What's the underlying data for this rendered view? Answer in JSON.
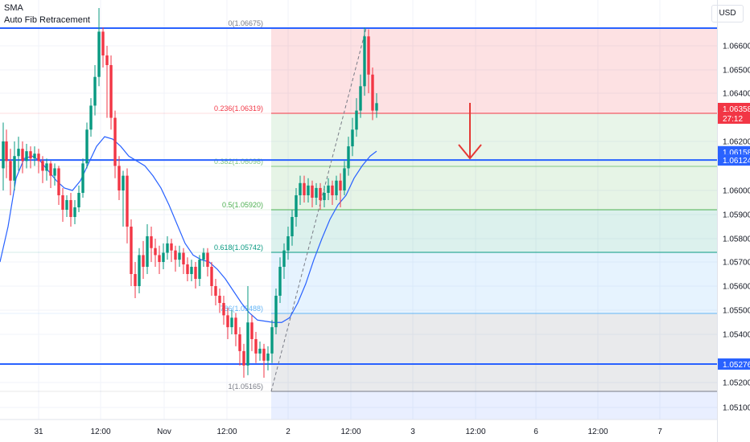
{
  "indicators": {
    "sma": "SMA",
    "fib": "Auto Fib Retracement"
  },
  "currency": "USD",
  "chart_data": {
    "type": "candlestick",
    "symbol_currency": "USD",
    "y_range": [
      1.05,
      1.068
    ],
    "y_ticks": [
      "1.06600",
      "1.06500",
      "1.06400",
      "1.06200",
      "1.06000",
      "1.05900",
      "1.05800",
      "1.05700",
      "1.05600",
      "1.05500",
      "1.05400",
      "1.05200",
      "1.05100"
    ],
    "x_ticks": [
      "31",
      "12:00",
      "Nov",
      "12:00",
      "2",
      "12:00",
      "3",
      "12:00",
      "6",
      "12:00",
      "7"
    ],
    "fib_levels": [
      {
        "ratio": "0",
        "price": 1.06675,
        "label": "0(1.06675)",
        "color": "#787b86"
      },
      {
        "ratio": "0.236",
        "price": 1.06319,
        "label": "0.236(1.06319)",
        "color": "#f23645"
      },
      {
        "ratio": "0.382",
        "price": 1.06098,
        "label": "0.382(1.06098)",
        "color": "#81c784"
      },
      {
        "ratio": "0.5",
        "price": 1.0592,
        "label": "0.5(1.05920)",
        "color": "#4caf50"
      },
      {
        "ratio": "0.618",
        "price": 1.05742,
        "label": "0.618(1.05742)",
        "color": "#089981"
      },
      {
        "ratio": "0.786",
        "price": 1.05488,
        "label": "786(1.05488)",
        "color": "#64b5f6"
      },
      {
        "ratio": "1",
        "price": 1.05165,
        "label": "1(1.05165)",
        "color": "#787b86"
      }
    ],
    "horizontal_lines": [
      1.06675,
      1.06124,
      1.05276
    ],
    "price_labels": [
      {
        "text": "1.06358",
        "sub": "27:12",
        "price": 1.06319,
        "color": "#f23645"
      },
      {
        "text": "1.06158",
        "price": 1.06158,
        "color": "#2962ff"
      },
      {
        "text": "1.06124",
        "price": 1.06124,
        "color": "#2962ff"
      },
      {
        "text": "1.05276",
        "price": 1.05276,
        "color": "#2962ff"
      }
    ],
    "sma": [
      [
        0,
        1.057
      ],
      [
        10,
        1.0585
      ],
      [
        20,
        1.0605
      ],
      [
        30,
        1.0613
      ],
      [
        40,
        1.0614
      ],
      [
        50,
        1.0612
      ],
      [
        60,
        1.0608
      ],
      [
        70,
        1.0604
      ],
      [
        80,
        1.0601
      ],
      [
        90,
        1.06
      ],
      [
        100,
        1.0604
      ],
      [
        110,
        1.0611
      ],
      [
        120,
        1.0618
      ],
      [
        130,
        1.0622
      ],
      [
        140,
        1.0621
      ],
      [
        150,
        1.0618
      ],
      [
        160,
        1.0614
      ],
      [
        170,
        1.0612
      ],
      [
        180,
        1.061
      ],
      [
        190,
        1.0606
      ],
      [
        200,
        1.0601
      ],
      [
        210,
        1.0594
      ],
      [
        220,
        1.0586
      ],
      [
        230,
        1.0578
      ],
      [
        240,
        1.0573
      ],
      [
        250,
        1.0571
      ],
      [
        260,
        1.057
      ],
      [
        270,
        1.0567
      ],
      [
        280,
        1.0563
      ],
      [
        290,
        1.0558
      ],
      [
        300,
        1.0553
      ],
      [
        310,
        1.0549
      ],
      [
        320,
        1.0546
      ],
      [
        340,
        1.0545
      ],
      [
        350,
        1.0545
      ],
      [
        360,
        1.0547
      ],
      [
        370,
        1.0553
      ],
      [
        380,
        1.0561
      ],
      [
        390,
        1.0571
      ],
      [
        400,
        1.058
      ],
      [
        410,
        1.0588
      ],
      [
        420,
        1.0594
      ],
      [
        430,
        1.0598
      ],
      [
        440,
        1.0605
      ],
      [
        450,
        1.061
      ],
      [
        460,
        1.0614
      ],
      [
        468,
        1.0616
      ]
    ],
    "candles": [
      [
        4,
        1.0609,
        1.062,
        1.06,
        1.0628
      ],
      [
        8,
        1.062,
        1.0612,
        1.0605,
        1.0625
      ],
      [
        13,
        1.0612,
        1.0604,
        1.0598,
        1.0617
      ],
      [
        18,
        1.0604,
        1.0614,
        1.06,
        1.062
      ],
      [
        23,
        1.0614,
        1.0617,
        1.0608,
        1.0622
      ],
      [
        28,
        1.0617,
        1.0612,
        1.0607,
        1.062
      ],
      [
        33,
        1.0612,
        1.0616,
        1.0609,
        1.0619
      ],
      [
        38,
        1.0616,
        1.0613,
        1.0609,
        1.0618
      ],
      [
        43,
        1.0613,
        1.0615,
        1.061,
        1.0618
      ],
      [
        48,
        1.0615,
        1.0612,
        1.0607,
        1.0617
      ],
      [
        53,
        1.0612,
        1.0608,
        1.0603,
        1.0614
      ],
      [
        58,
        1.0608,
        1.0611,
        1.0604,
        1.0613
      ],
      [
        63,
        1.0611,
        1.0606,
        1.0601,
        1.0612
      ],
      [
        68,
        1.0606,
        1.0609,
        1.0602,
        1.0611
      ],
      [
        73,
        1.0609,
        1.0598,
        1.0594,
        1.061
      ],
      [
        78,
        1.0598,
        1.0592,
        1.0587,
        1.0601
      ],
      [
        83,
        1.0592,
        1.0596,
        1.0589,
        1.0598
      ],
      [
        88,
        1.0596,
        1.0589,
        1.0585,
        1.0599
      ],
      [
        93,
        1.0589,
        1.0593,
        1.0586,
        1.0596
      ],
      [
        98,
        1.0593,
        1.0599,
        1.0591,
        1.0602
      ],
      [
        103,
        1.0599,
        1.0611,
        1.0597,
        1.0613
      ],
      [
        108,
        1.0611,
        1.0625,
        1.0609,
        1.0628
      ],
      [
        113,
        1.0625,
        1.0635,
        1.0622,
        1.0638
      ],
      [
        118,
        1.0635,
        1.0647,
        1.0631,
        1.0652
      ],
      [
        123,
        1.0647,
        1.0666,
        1.0643,
        1.0682
      ],
      [
        128,
        1.0666,
        1.0656,
        1.0651,
        1.0668
      ],
      [
        133,
        1.0656,
        1.0652,
        1.063,
        1.066
      ],
      [
        138,
        1.0652,
        1.063,
        1.0625,
        1.0656
      ],
      [
        143,
        1.063,
        1.061,
        1.0605,
        1.0633
      ],
      [
        148,
        1.061,
        1.06,
        1.0596,
        1.0614
      ],
      [
        153,
        1.06,
        1.0606,
        1.0585,
        1.0608
      ],
      [
        158,
        1.0606,
        1.0585,
        1.0578,
        1.0609
      ],
      [
        163,
        1.0585,
        1.0565,
        1.056,
        1.0588
      ],
      [
        168,
        1.0565,
        1.056,
        1.0555,
        1.057
      ],
      [
        173,
        1.056,
        1.0573,
        1.0557,
        1.0576
      ],
      [
        178,
        1.0573,
        1.0568,
        1.0563,
        1.0579
      ],
      [
        183,
        1.0568,
        1.0581,
        1.0565,
        1.0586
      ],
      [
        188,
        1.0581,
        1.0576,
        1.057,
        1.0585
      ],
      [
        193,
        1.0576,
        1.0573,
        1.0568,
        1.058
      ],
      [
        198,
        1.0573,
        1.057,
        1.0565,
        1.0577
      ],
      [
        203,
        1.057,
        1.0574,
        1.0567,
        1.0578
      ],
      [
        208,
        1.0574,
        1.0578,
        1.0571,
        1.0581
      ],
      [
        213,
        1.0578,
        1.0575,
        1.057,
        1.058
      ],
      [
        218,
        1.0575,
        1.0571,
        1.0566,
        1.0577
      ],
      [
        223,
        1.0571,
        1.0574,
        1.0568,
        1.0577
      ],
      [
        228,
        1.0574,
        1.0569,
        1.0565,
        1.0576
      ],
      [
        233,
        1.0569,
        1.0565,
        1.0562,
        1.0572
      ],
      [
        238,
        1.0565,
        1.0568,
        1.0562,
        1.0571
      ],
      [
        243,
        1.0568,
        1.0563,
        1.0559,
        1.057
      ],
      [
        248,
        1.0563,
        1.0571,
        1.056,
        1.0573
      ],
      [
        253,
        1.0571,
        1.0574,
        1.0568,
        1.0576
      ],
      [
        258,
        1.0574,
        1.0568,
        1.0564,
        1.0576
      ],
      [
        263,
        1.0568,
        1.056,
        1.0556,
        1.057
      ],
      [
        268,
        1.056,
        1.0556,
        1.0552,
        1.0563
      ],
      [
        273,
        1.0556,
        1.0553,
        1.0549,
        1.0559
      ],
      [
        278,
        1.0553,
        1.0548,
        1.0544,
        1.0556
      ],
      [
        283,
        1.0548,
        1.0543,
        1.0538,
        1.0551
      ],
      [
        288,
        1.0543,
        1.0547,
        1.054,
        1.055
      ],
      [
        293,
        1.0547,
        1.054,
        1.0535,
        1.0549
      ],
      [
        298,
        1.054,
        1.0533,
        1.0527,
        1.0543
      ],
      [
        303,
        1.0533,
        1.0527,
        1.0522,
        1.0536
      ],
      [
        308,
        1.0527,
        1.0545,
        1.0523,
        1.056
      ],
      [
        313,
        1.0545,
        1.0538,
        1.0533,
        1.0548
      ],
      [
        318,
        1.0538,
        1.0532,
        1.0528,
        1.0541
      ],
      [
        323,
        1.0532,
        1.0534,
        1.0529,
        1.0537
      ],
      [
        328,
        1.0534,
        1.0529,
        1.0522,
        1.0536
      ],
      [
        333,
        1.0529,
        1.0532,
        1.0525,
        1.0535
      ],
      [
        338,
        1.0532,
        1.0543,
        1.0528,
        1.0546
      ],
      [
        343,
        1.0543,
        1.0556,
        1.054,
        1.0559
      ],
      [
        348,
        1.0556,
        1.0568,
        1.0553,
        1.0572
      ],
      [
        353,
        1.0568,
        1.0575,
        1.0563,
        1.0578
      ],
      [
        358,
        1.0575,
        1.0581,
        1.0571,
        1.0585
      ],
      [
        363,
        1.0581,
        1.0589,
        1.0577,
        1.0592
      ],
      [
        368,
        1.0589,
        1.0598,
        1.0585,
        1.0601
      ],
      [
        373,
        1.0598,
        1.0603,
        1.0594,
        1.0606
      ],
      [
        378,
        1.0603,
        1.0598,
        1.0595,
        1.0606
      ],
      [
        383,
        1.0598,
        1.0602,
        1.0595,
        1.0605
      ],
      [
        388,
        1.0602,
        1.0597,
        1.0593,
        1.0604
      ],
      [
        393,
        1.0597,
        1.0601,
        1.0594,
        1.0603
      ],
      [
        398,
        1.0601,
        1.0596,
        1.0592,
        1.0603
      ],
      [
        403,
        1.0596,
        1.0599,
        1.0593,
        1.0602
      ],
      [
        408,
        1.0599,
        1.0602,
        1.0596,
        1.0605
      ],
      [
        413,
        1.0602,
        1.0598,
        1.0594,
        1.0604
      ],
      [
        418,
        1.0598,
        1.0604,
        1.0596,
        1.0606
      ],
      [
        423,
        1.0604,
        1.06,
        1.0593,
        1.0607
      ],
      [
        428,
        1.06,
        1.0609,
        1.0598,
        1.0612
      ],
      [
        433,
        1.0609,
        1.0618,
        1.0606,
        1.0622
      ],
      [
        438,
        1.0618,
        1.0625,
        1.0614,
        1.063
      ],
      [
        443,
        1.0625,
        1.0633,
        1.0622,
        1.0638
      ],
      [
        448,
        1.0633,
        1.0643,
        1.063,
        1.0648
      ],
      [
        453,
        1.0643,
        1.0664,
        1.0639,
        1.0668
      ],
      [
        458,
        1.0664,
        1.0648,
        1.064,
        1.0667
      ],
      [
        463,
        1.0648,
        1.0633,
        1.0629,
        1.0651
      ],
      [
        468,
        1.0633,
        1.0636,
        1.063,
        1.064
      ]
    ]
  }
}
